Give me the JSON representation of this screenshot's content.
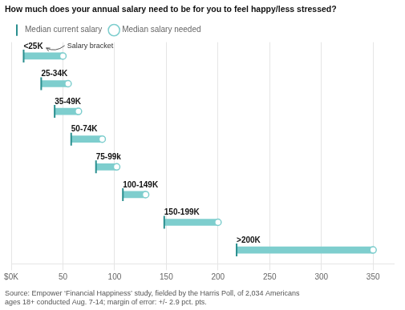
{
  "chart_data": {
    "type": "bar",
    "orientation": "horizontal",
    "title": "How much does your annual salary need to be for you to feel happy/less stressed?",
    "categories": [
      "<25K",
      "25-34K",
      "35-49K",
      "50-74K",
      "75-99k",
      "100-149K",
      "150-199K",
      ">200K"
    ],
    "series": [
      {
        "name": "Median current salary",
        "color": "#2a8f8f",
        "marker": "line",
        "values": [
          12,
          29,
          42,
          58,
          82,
          108,
          148,
          218
        ]
      },
      {
        "name": "Median salary needed",
        "color": "#7ecece",
        "marker": "circle",
        "values": [
          50,
          55,
          65,
          88,
          102,
          130,
          200,
          350
        ]
      }
    ],
    "color": "#7ecece",
    "xlim": [
      0,
      370
    ],
    "xticks": [
      {
        "value": 0,
        "label": "$0K"
      },
      50,
      100,
      150,
      200,
      250,
      300,
      350
    ],
    "grid": true,
    "legend": "top",
    "tick_labels": "x",
    "annotation": "Salary bracket",
    "source": "Source: Empower ‘Financial Happiness’ study, fielded by the Harris Poll, of 2,034 Americans\nages 18+ conducted Aug. 7-14; margin of error: +/- 2.9 pct. pts."
  }
}
